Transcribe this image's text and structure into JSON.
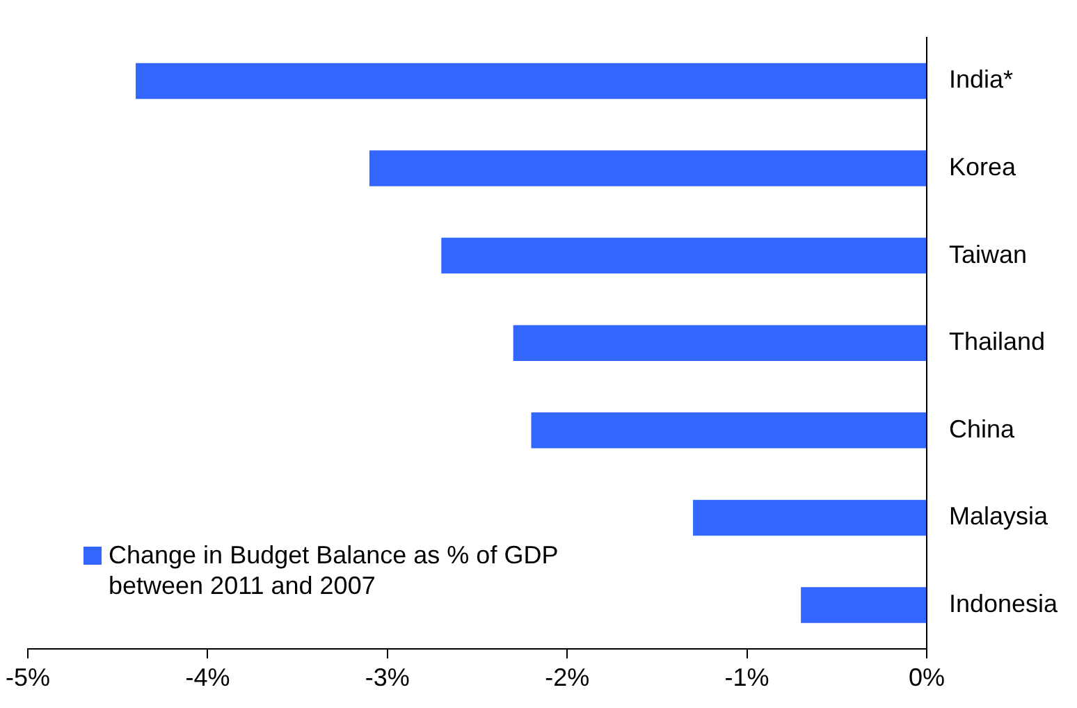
{
  "chart_data": {
    "type": "bar",
    "orientation": "horizontal",
    "categories": [
      "India*",
      "Korea",
      "Taiwan",
      "Thailand",
      "China",
      "Malaysia",
      "Indonesia"
    ],
    "series": [
      {
        "name": "Change in Budget Balance as % of GDP between 2011 and 2007",
        "color": "#3366ff",
        "values": [
          -4.4,
          -3.1,
          -2.7,
          -2.3,
          -2.2,
          -1.3,
          -0.7
        ]
      }
    ],
    "xlim": [
      -5,
      0
    ],
    "xticks": [
      {
        "value": -5,
        "label": "-5%"
      },
      {
        "value": -4,
        "label": "-4%"
      },
      {
        "value": -3,
        "label": "-3%"
      },
      {
        "value": -2,
        "label": "-2%"
      },
      {
        "value": -1,
        "label": "-1%"
      },
      {
        "value": 0,
        "label": "0%"
      }
    ],
    "grid": false,
    "legend": "bottom left"
  }
}
